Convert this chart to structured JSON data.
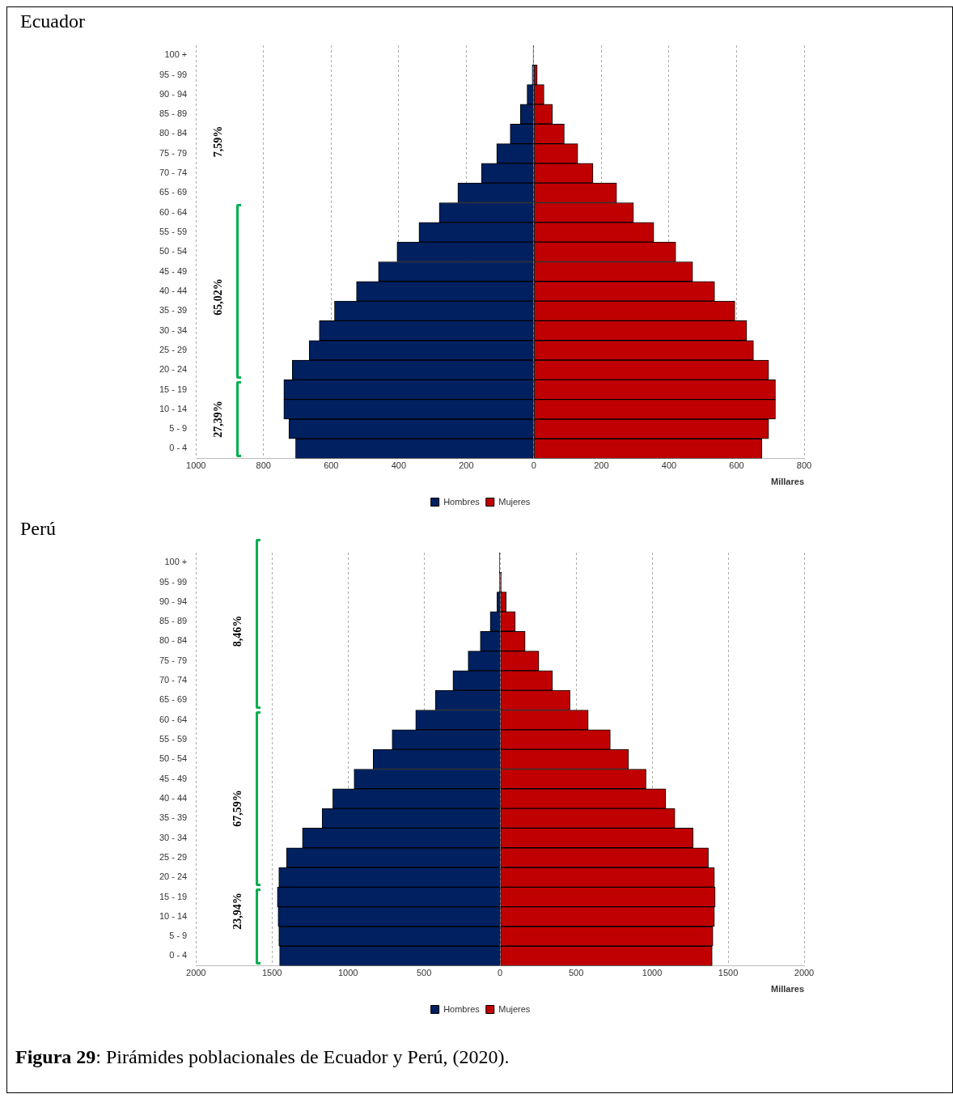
{
  "chart_data": [
    {
      "type": "bar",
      "title": "Ecuador",
      "orientation": "horizontal",
      "stacked": true,
      "xlabel": "Millares",
      "categories": [
        "100 +",
        "95 - 99",
        "90 - 94",
        "85 - 89",
        "80 - 84",
        "75 - 79",
        "70 - 74",
        "65 - 69",
        "60 - 64",
        "55 - 59",
        "50 - 54",
        "45 - 49",
        "40 - 44",
        "35 - 39",
        "30 - 34",
        "25 - 29",
        "20 - 24",
        "15 - 19",
        "10 - 14",
        "5 - 9",
        "0 - 4"
      ],
      "series": [
        {
          "name": "Hombres",
          "color": "#002060",
          "values": [
            -2,
            -5,
            -20,
            -40,
            -70,
            -110,
            -155,
            -225,
            -280,
            -340,
            -405,
            -460,
            -525,
            -590,
            -635,
            -665,
            -715,
            -740,
            -740,
            -725,
            -705
          ]
        },
        {
          "name": "Mujeres",
          "color": "#c00000",
          "values": [
            null,
            10,
            30,
            55,
            90,
            130,
            175,
            245,
            295,
            355,
            420,
            470,
            535,
            595,
            630,
            650,
            695,
            715,
            715,
            695,
            675
          ]
        }
      ],
      "xlim": [
        -1000,
        800
      ],
      "xticks": [
        {
          "value": -1000,
          "label": "1000"
        },
        {
          "value": -800,
          "label": "800"
        },
        {
          "value": -600,
          "label": "600"
        },
        {
          "value": -400,
          "label": "400"
        },
        {
          "value": -200,
          "label": "200"
        },
        0,
        200,
        400,
        600,
        800
      ],
      "grid": "x",
      "legend": "bottom",
      "annotations": [
        "7,59%",
        "65,02%",
        "27,39%"
      ]
    },
    {
      "type": "bar",
      "title": "Perú",
      "orientation": "horizontal",
      "stacked": true,
      "xlabel": "Millares",
      "categories": [
        "100 +",
        "95 - 99",
        "90 - 94",
        "85 - 89",
        "80 - 84",
        "75 - 79",
        "70 - 74",
        "65 - 69",
        "60 - 64",
        "55 - 59",
        "50 - 54",
        "45 - 49",
        "40 - 44",
        "35 - 39",
        "30 - 34",
        "25 - 29",
        "20 - 24",
        "15 - 19",
        "10 - 14",
        "5 - 9",
        "0 - 4"
      ],
      "series": [
        {
          "name": "Hombres",
          "color": "#002060",
          "values": [
            -5,
            -5,
            -20,
            -65,
            -130,
            -210,
            -310,
            -425,
            -555,
            -710,
            -835,
            -960,
            -1100,
            -1170,
            -1300,
            -1405,
            -1455,
            -1465,
            -1460,
            -1455,
            -1450
          ]
        },
        {
          "name": "Mujeres",
          "color": "#c00000",
          "values": [
            null,
            10,
            40,
            100,
            165,
            255,
            345,
            460,
            580,
            725,
            845,
            960,
            1090,
            1150,
            1270,
            1370,
            1410,
            1415,
            1410,
            1400,
            1395
          ]
        }
      ],
      "xlim": [
        -2000,
        2000
      ],
      "xticks": [
        {
          "value": -2000,
          "label": "2000"
        },
        {
          "value": -1500,
          "label": "1500"
        },
        {
          "value": -1000,
          "label": "1000"
        },
        {
          "value": -500,
          "label": "500"
        },
        0,
        500,
        1000,
        1500,
        2000
      ],
      "grid": "x",
      "legend": "bottom",
      "annotations": [
        "8,46%",
        "67,59%",
        "23,94%",
        "Figura 29: Pirámides poblacionales de Ecuador y Perú, (2020)."
      ]
    }
  ]
}
